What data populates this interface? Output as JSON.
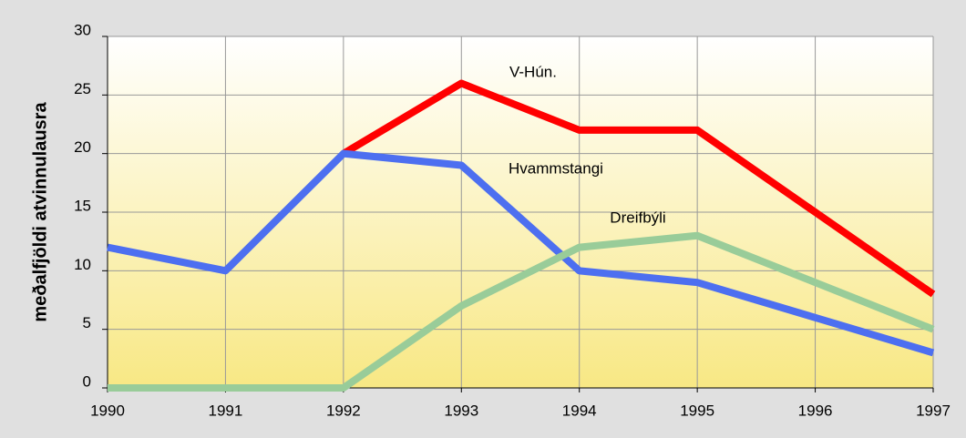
{
  "chart_data": {
    "type": "line",
    "y_label": "meðalfjöldi atvinnulausra",
    "x": [
      1990,
      1991,
      1992,
      1993,
      1994,
      1995,
      1996,
      1997
    ],
    "series": [
      {
        "name": "V-Hún.",
        "color": "#ff0000",
        "values": [
          null,
          null,
          20,
          26,
          22,
          22,
          15,
          8
        ]
      },
      {
        "name": "Hvammstangi",
        "color": "#4d6ff0",
        "values": [
          12,
          10,
          20,
          19,
          10,
          9,
          6,
          3
        ]
      },
      {
        "name": "Dreifbýli",
        "color": "#99cc99",
        "values": [
          0,
          0,
          0,
          7,
          12,
          13,
          9,
          5
        ]
      }
    ],
    "xlim": [
      1990,
      1997
    ],
    "xticks": [
      1990,
      1991,
      1992,
      1993,
      1994,
      1995,
      1996,
      1997
    ],
    "ylim": [
      0,
      30
    ],
    "yticks": [
      0,
      5,
      10,
      15,
      20,
      25,
      30
    ],
    "grid": true
  }
}
